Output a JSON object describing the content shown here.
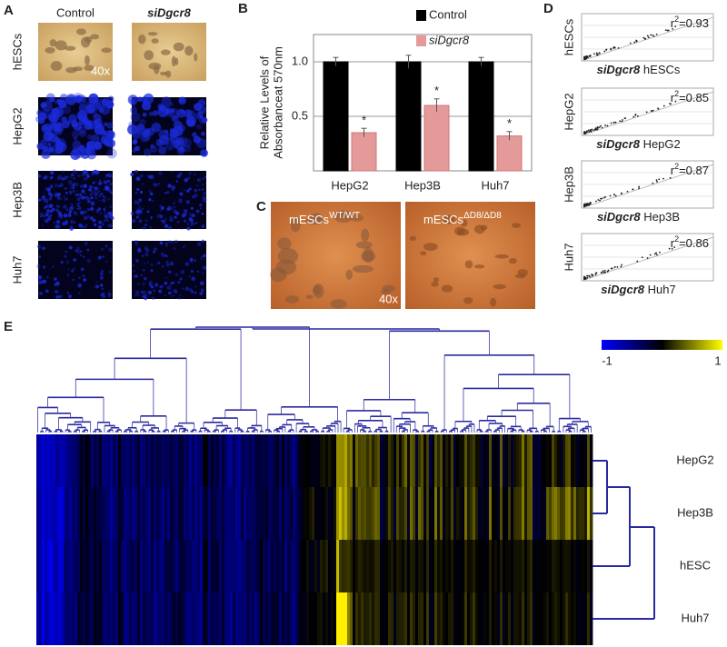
{
  "panel_labels": [
    "A",
    "B",
    "C",
    "D",
    "E"
  ],
  "panel_a": {
    "columns": [
      "Control",
      "siDgcr8"
    ],
    "rows": [
      "hESCs",
      "HepG2",
      "Hep3B",
      "Huh7"
    ],
    "magnification": "40x"
  },
  "chart_data": {
    "type": "bar",
    "y_label": [
      "Relative Levels of",
      "Absorbanceat 570nm"
    ],
    "categories": [
      "HepG2",
      "Hep3B",
      "Huh7"
    ],
    "series": [
      {
        "name": "Control",
        "color": "#000000",
        "values": [
          1,
          1,
          1
        ],
        "errors": [
          0.04,
          0.06,
          0.04
        ]
      },
      {
        "name": "siDgcr8",
        "color": "#e59a9a",
        "values": [
          0.35,
          0.6,
          0.32
        ],
        "errors": [
          0.04,
          0.06,
          0.04
        ],
        "annotations": [
          "*",
          "*",
          "*"
        ]
      }
    ],
    "ylim": [
      0,
      1.25
    ],
    "yticks": [
      0.5,
      {
        "value": 1,
        "label": "1.0"
      }
    ],
    "grid": true
  },
  "panel_c": {
    "images": [
      {
        "base": "mESCs",
        "sup": "WT/WT"
      },
      {
        "base": "mESCs",
        "sup": "ΔD8/ΔD8"
      }
    ],
    "magnification": "40x"
  },
  "panel_d": {
    "plots": [
      {
        "cell": "hESCs",
        "gene": "siDgcr8",
        "r_symbol": "r",
        "r_power": "2",
        "r_value": "=0.93"
      },
      {
        "cell": "HepG2",
        "gene": "siDgcr8",
        "r_symbol": "r",
        "r_power": "2",
        "r_value": "=0.85"
      },
      {
        "cell": "Hep3B",
        "gene": "siDgcr8",
        "r_symbol": "r",
        "r_power": "2",
        "r_value": "=0.87"
      },
      {
        "cell": "Huh7",
        "gene": "siDgcr8",
        "r_symbol": "r",
        "r_power": "2",
        "r_value": "=0.86"
      }
    ]
  },
  "panel_e": {
    "colorbar": {
      "min": -1,
      "max": 1
    },
    "rows": [
      "HepG2",
      "Hep3B",
      "hESC",
      "Huh7"
    ]
  }
}
